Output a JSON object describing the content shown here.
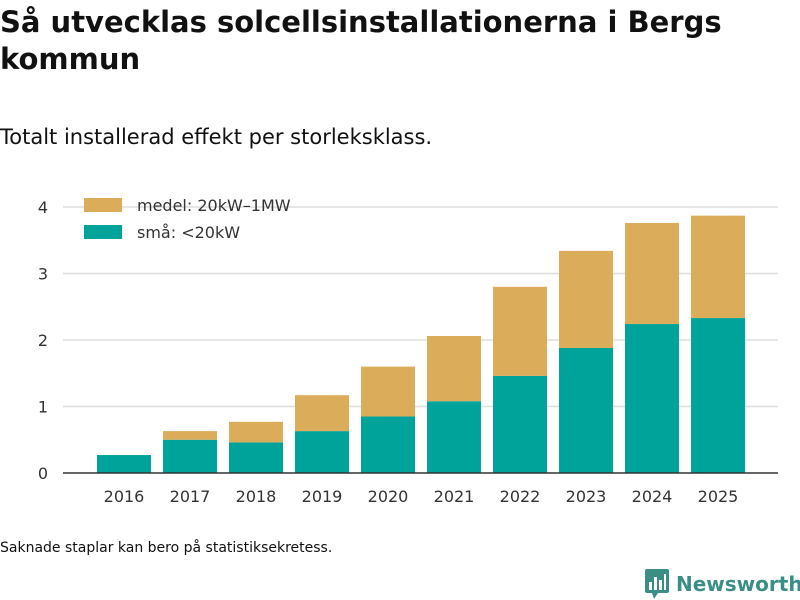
{
  "title": "Så utvecklas solcellsinstallationerna i Bergs kommun",
  "subtitle": "Totalt installerad effekt per storleksklass.",
  "footnote": "Saknade staplar kan bero på statistiksekretess.",
  "brand": {
    "name": "Newsworthy"
  },
  "colors": {
    "small": "#00a39a",
    "medium": "#dbad5a",
    "grid": "#dddddd",
    "axis": "#333333",
    "brand": "#3a8e86"
  },
  "chart_data": {
    "type": "bar",
    "stacked": true,
    "categories": [
      "2016",
      "2017",
      "2018",
      "2019",
      "2020",
      "2021",
      "2022",
      "2023",
      "2024",
      "2025"
    ],
    "series": [
      {
        "name": "små: <20kW",
        "color": "#00a39a",
        "values": [
          0.27,
          0.5,
          0.46,
          0.63,
          0.85,
          1.08,
          1.46,
          1.88,
          2.24,
          2.33
        ]
      },
      {
        "name": "medel: 20kW–1MW",
        "color": "#dbad5a",
        "values": [
          0.0,
          0.13,
          0.31,
          0.54,
          0.75,
          0.98,
          1.34,
          1.46,
          1.52,
          1.54
        ]
      }
    ],
    "legend": [
      "medel: 20kW–1MW",
      "små: <20kW"
    ],
    "yticks": [
      0,
      1,
      2,
      3,
      4
    ],
    "ylim": [
      0,
      4.4
    ],
    "grid": true,
    "xlabel": "",
    "ylabel": "",
    "legend_position": "top-left"
  }
}
